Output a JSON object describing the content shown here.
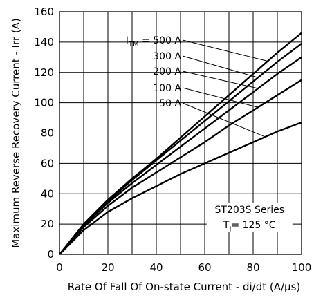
{
  "chart_data": {
    "type": "line",
    "xlabel": "Rate Of Fall Of On-state Current - di/dt (A/μs)",
    "ylabel": "Maximum Reverse Recovery Current - Irr (A)",
    "xlim": [
      0,
      100
    ],
    "ylim": [
      0,
      160
    ],
    "x_ticks": [
      0,
      20,
      40,
      60,
      80,
      100
    ],
    "y_ticks": [
      0,
      20,
      40,
      60,
      80,
      100,
      120,
      140,
      160
    ],
    "grid": true,
    "x": [
      0,
      10,
      20,
      30,
      40,
      50,
      60,
      70,
      80,
      90,
      100
    ],
    "series": [
      {
        "name": "500 A",
        "values": [
          0,
          20,
          36,
          50,
          63,
          77,
          91,
          105,
          119,
          133,
          146
        ]
      },
      {
        "name": "300 A",
        "values": [
          0,
          19.5,
          35,
          49,
          62,
          75,
          88,
          101,
          114,
          127,
          139
        ]
      },
      {
        "name": "200 A",
        "values": [
          0,
          19,
          34,
          47,
          59,
          71,
          83,
          95,
          107,
          119,
          130
        ]
      },
      {
        "name": "100 A",
        "values": [
          0,
          18,
          32,
          44,
          54,
          64,
          74,
          85,
          95,
          105,
          115
        ]
      },
      {
        "name": "50 A",
        "values": [
          0,
          16,
          28,
          37,
          45,
          53,
          60,
          67,
          74,
          81,
          87
        ]
      }
    ],
    "label_prefix_main": "I",
    "label_prefix_sub": "TM",
    "label_prefix_eq": "=",
    "series_name": "ST203S Series",
    "condition_main": "T",
    "condition_sub": "J",
    "condition_value": "= 125 °C"
  }
}
